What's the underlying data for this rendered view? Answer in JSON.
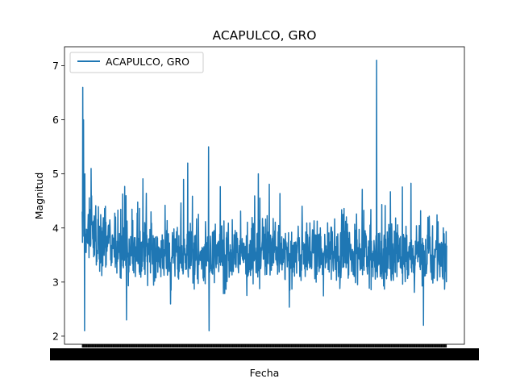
{
  "chart_data": {
    "type": "line",
    "title": "ACAPULCO, GRO",
    "xlabel": "Fecha",
    "ylabel": "Magnitud",
    "ylim": [
      1.85,
      7.35
    ],
    "yticks": [
      "2",
      "3",
      "4",
      "5",
      "6",
      "7"
    ],
    "grid": false,
    "legend_position": "upper-left",
    "colors": {
      "line": "#1f77b4",
      "axes": "#000000",
      "background": "#ffffff"
    },
    "series": [
      {
        "name": "ACAPULCO, GRO",
        "n_points": 1400,
        "baseline_mean": 3.55,
        "notable_points": [
          {
            "index": 2,
            "value": 6.6
          },
          {
            "index": 4,
            "value": 5.7
          },
          {
            "index": 5,
            "value": 6.0
          },
          {
            "index": 9,
            "value": 2.1
          },
          {
            "index": 34,
            "value": 5.1
          },
          {
            "index": 170,
            "value": 2.3
          },
          {
            "index": 405,
            "value": 5.2
          },
          {
            "index": 485,
            "value": 5.5
          },
          {
            "index": 487,
            "value": 2.1
          },
          {
            "index": 1130,
            "value": 7.1
          },
          {
            "index": 1310,
            "value": 2.2
          }
        ]
      }
    ]
  }
}
